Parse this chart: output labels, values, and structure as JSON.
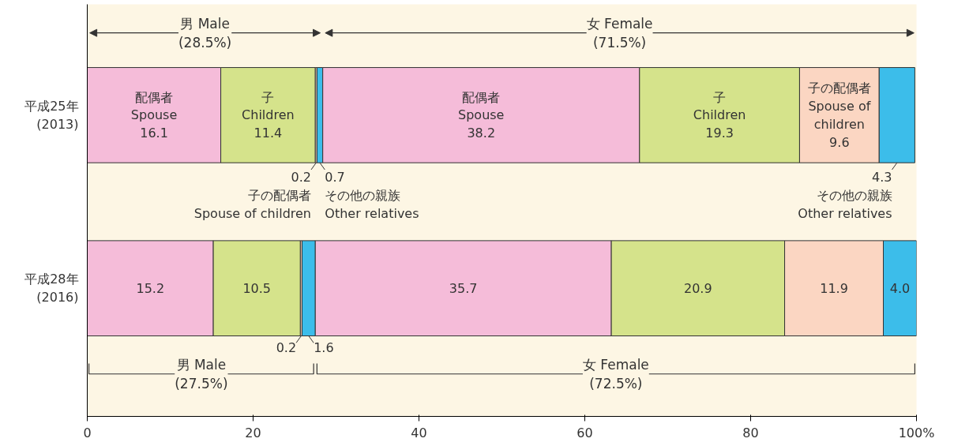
{
  "chart_data": {
    "type": "bar",
    "orientation": "horizontal",
    "stacked": true,
    "categories": [
      "平成25年\n(2013)",
      "平成28年\n(2016)"
    ],
    "series": [
      {
        "name": "配偶者\nSpouse",
        "color": "#f5bcd9",
        "values": [
          16.1,
          15.2
        ],
        "value_labels": [
          "16.1",
          "15.2"
        ]
      },
      {
        "name": "子\nChildren",
        "color": "#d5e38b",
        "values": [
          11.4,
          10.5
        ],
        "value_labels": [
          "11.4",
          "10.5"
        ]
      },
      {
        "name": "子の配偶者\nSpouse of children",
        "color": "#fbd6c2",
        "values": [
          0.2,
          0.2
        ],
        "value_labels": [
          "0.2",
          "0.2"
        ]
      },
      {
        "name": "その他の親族\nOther relatives",
        "color": "#3cbdea",
        "values": [
          0.7,
          1.6
        ],
        "value_labels": [
          "0.7",
          "1.6"
        ]
      },
      {
        "name": "配偶者\nSpouse",
        "color": "#f5bcd9",
        "values": [
          38.2,
          35.7
        ],
        "value_labels": [
          "38.2",
          "35.7"
        ]
      },
      {
        "name": "子\nChildren",
        "color": "#d5e38b",
        "values": [
          19.3,
          20.9
        ],
        "value_labels": [
          "19.3",
          "20.9"
        ]
      },
      {
        "name": "子の配偶者\nSpouse of\nchildren",
        "color": "#fbd6c2",
        "values": [
          9.6,
          11.9
        ],
        "value_labels": [
          "9.6",
          "11.9"
        ]
      },
      {
        "name": "その他の親族\nOther relatives",
        "color": "#3cbdea",
        "values": [
          4.3,
          4.0
        ],
        "value_labels": [
          "4.3",
          "4.0"
        ]
      }
    ],
    "xlim": [
      0,
      100
    ],
    "xticks": [
      0,
      20,
      40,
      60,
      80,
      {
        "value": 100,
        "label": "100%"
      }
    ],
    "annotations": [
      "男 Male\n(28.5%)",
      "女 Female\n(71.5%)",
      "男 Male\n(27.5%)",
      "女 Female\n(72.5%)"
    ],
    "grid": false
  }
}
